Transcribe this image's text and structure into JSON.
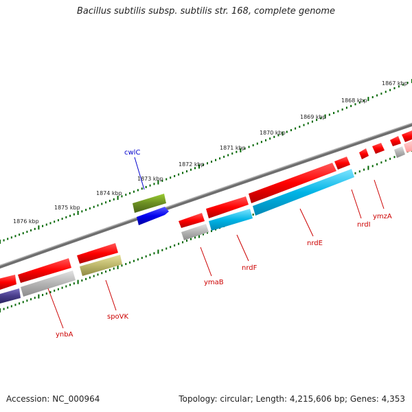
{
  "header": {
    "title": "Bacillus subtilis subsp. subtilis str. 168, complete genome"
  },
  "footer": {
    "accession": "Accession: NC_000964",
    "topology": "Topology: circular; Length: 4,215,606 bp; Genes: 4,353"
  },
  "map": {
    "scale_labels": [
      "1867 kbp",
      "1868 kbp",
      "1869 kbp",
      "1870 kbp",
      "1871 kbp",
      "1872 kbp",
      "1873 kbp",
      "1874 kbp",
      "1875 kbp",
      "1876 kbp"
    ],
    "gene_labels": [
      "cwlC",
      "ynbA",
      "spoVK",
      "ymaB",
      "nrdF",
      "nrdE",
      "nrdI",
      "ymzA"
    ],
    "colors": {
      "forward_strand_cds": "#ff0000",
      "scale_dots": "#006600",
      "backbone": "#777777",
      "cwlC_label": "#0000cc",
      "other_labels": "#cc0000",
      "nrdE_feature": "#00b4e6",
      "cwlC_upper_feature": "#6b8e23",
      "cwlC_lower_feature": "#0000ee",
      "spoVK_feature": "#bdb76b",
      "grey_feature": "#b4b4b4",
      "purple_feature": "#483d8b"
    }
  }
}
